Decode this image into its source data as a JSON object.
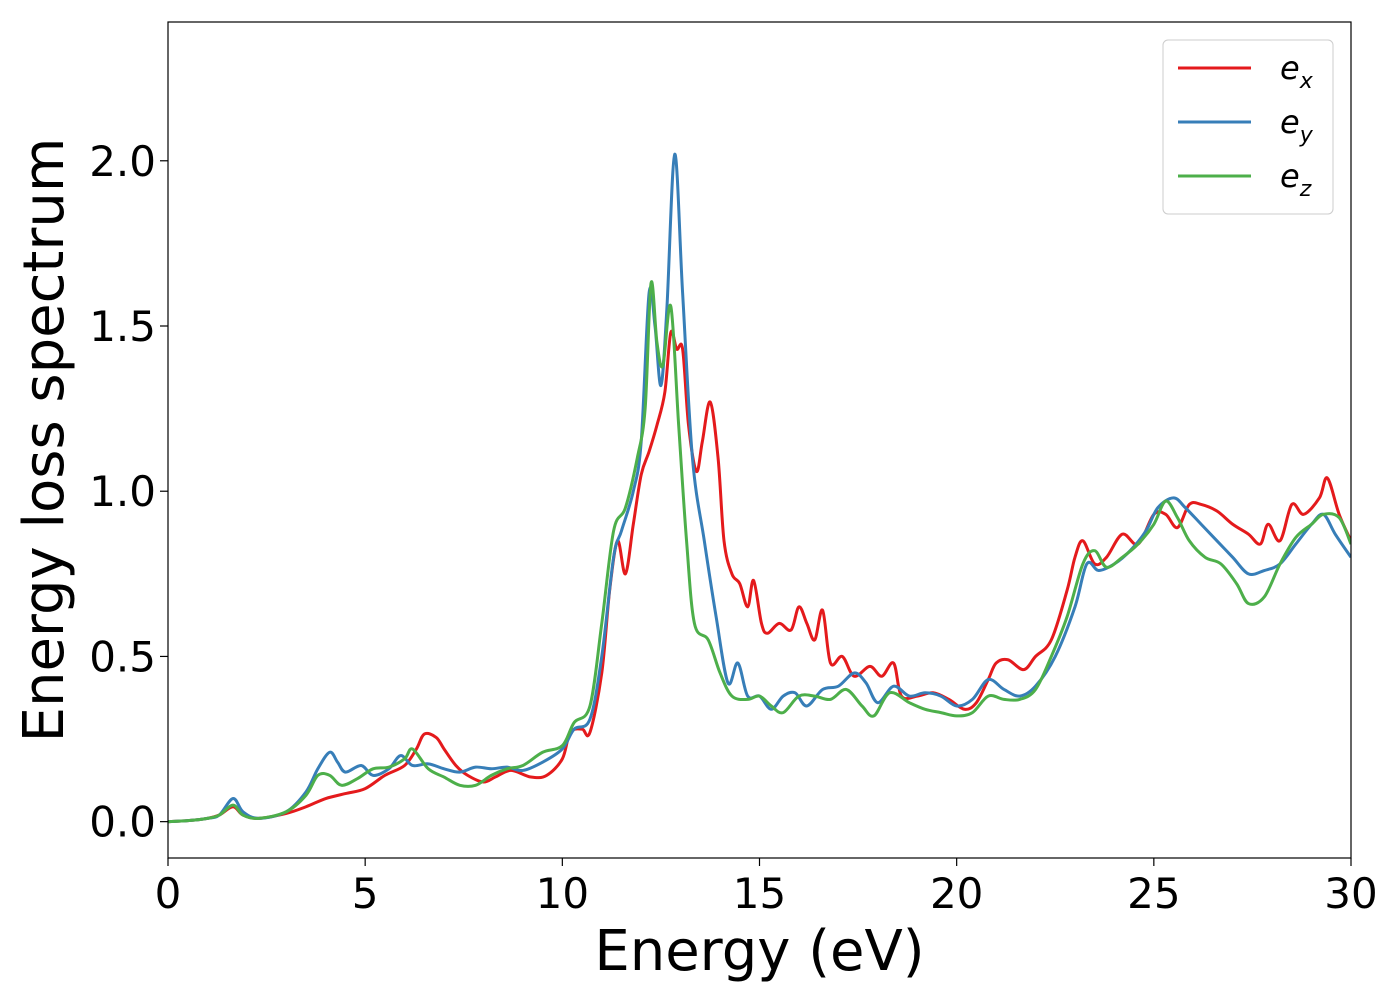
{
  "chart_data": {
    "type": "line",
    "title": "",
    "xlabel": "Energy (eV)",
    "ylabel": "Energy loss spectrum",
    "xlim": [
      0,
      30
    ],
    "ylim": [
      -0.11,
      2.42
    ],
    "xticks": [
      0,
      5,
      10,
      15,
      20,
      25,
      30
    ],
    "xtick_labels": [
      "0",
      "5",
      "10",
      "15",
      "20",
      "25",
      "30"
    ],
    "yticks": [
      0.0,
      0.5,
      1.0,
      1.5,
      2.0
    ],
    "ytick_labels": [
      "0.0",
      "0.5",
      "1.0",
      "1.5",
      "2.0"
    ],
    "grid": false,
    "legend_position": "top-right",
    "series": [
      {
        "name": "e_x",
        "label_base": "e",
        "label_sub": "x",
        "color": "#e41a1c",
        "points": [
          [
            0,
            0
          ],
          [
            0.5,
            0.003
          ],
          [
            1,
            0.01
          ],
          [
            1.3,
            0.02
          ],
          [
            1.65,
            0.045
          ],
          [
            1.9,
            0.02
          ],
          [
            2.3,
            0.01
          ],
          [
            3,
            0.025
          ],
          [
            3.5,
            0.045
          ],
          [
            4,
            0.07
          ],
          [
            4.5,
            0.085
          ],
          [
            5,
            0.1
          ],
          [
            5.5,
            0.14
          ],
          [
            6,
            0.17
          ],
          [
            6.3,
            0.22
          ],
          [
            6.5,
            0.265
          ],
          [
            6.8,
            0.255
          ],
          [
            7,
            0.22
          ],
          [
            7.3,
            0.17
          ],
          [
            7.6,
            0.14
          ],
          [
            8,
            0.12
          ],
          [
            8.3,
            0.135
          ],
          [
            8.7,
            0.155
          ],
          [
            9.2,
            0.135
          ],
          [
            9.6,
            0.14
          ],
          [
            10,
            0.19
          ],
          [
            10.2,
            0.27
          ],
          [
            10.5,
            0.28
          ],
          [
            10.7,
            0.27
          ],
          [
            11,
            0.45
          ],
          [
            11.2,
            0.7
          ],
          [
            11.4,
            0.85
          ],
          [
            11.6,
            0.75
          ],
          [
            11.8,
            0.9
          ],
          [
            12,
            1.05
          ],
          [
            12.2,
            1.12
          ],
          [
            12.4,
            1.2
          ],
          [
            12.6,
            1.3
          ],
          [
            12.75,
            1.48
          ],
          [
            12.9,
            1.43
          ],
          [
            13.05,
            1.43
          ],
          [
            13.2,
            1.2
          ],
          [
            13.4,
            1.06
          ],
          [
            13.55,
            1.15
          ],
          [
            13.75,
            1.27
          ],
          [
            13.95,
            1.1
          ],
          [
            14.1,
            0.85
          ],
          [
            14.3,
            0.75
          ],
          [
            14.5,
            0.72
          ],
          [
            14.7,
            0.65
          ],
          [
            14.85,
            0.73
          ],
          [
            15.05,
            0.6
          ],
          [
            15.2,
            0.57
          ],
          [
            15.5,
            0.6
          ],
          [
            15.8,
            0.58
          ],
          [
            16,
            0.65
          ],
          [
            16.2,
            0.6
          ],
          [
            16.4,
            0.55
          ],
          [
            16.6,
            0.64
          ],
          [
            16.8,
            0.48
          ],
          [
            17.1,
            0.5
          ],
          [
            17.4,
            0.44
          ],
          [
            17.8,
            0.47
          ],
          [
            18.1,
            0.44
          ],
          [
            18.4,
            0.48
          ],
          [
            18.6,
            0.38
          ],
          [
            19,
            0.38
          ],
          [
            19.4,
            0.39
          ],
          [
            19.8,
            0.37
          ],
          [
            20.2,
            0.34
          ],
          [
            20.5,
            0.36
          ],
          [
            20.8,
            0.43
          ],
          [
            21,
            0.48
          ],
          [
            21.3,
            0.49
          ],
          [
            21.7,
            0.46
          ],
          [
            22,
            0.5
          ],
          [
            22.4,
            0.55
          ],
          [
            22.8,
            0.7
          ],
          [
            23,
            0.8
          ],
          [
            23.2,
            0.85
          ],
          [
            23.5,
            0.78
          ],
          [
            23.8,
            0.8
          ],
          [
            24.2,
            0.87
          ],
          [
            24.6,
            0.84
          ],
          [
            25,
            0.93
          ],
          [
            25.3,
            0.93
          ],
          [
            25.6,
            0.89
          ],
          [
            25.9,
            0.96
          ],
          [
            26.2,
            0.96
          ],
          [
            26.6,
            0.94
          ],
          [
            27,
            0.9
          ],
          [
            27.4,
            0.87
          ],
          [
            27.7,
            0.84
          ],
          [
            27.9,
            0.9
          ],
          [
            28.2,
            0.85
          ],
          [
            28.5,
            0.96
          ],
          [
            28.8,
            0.93
          ],
          [
            29.2,
            0.98
          ],
          [
            29.4,
            1.04
          ],
          [
            29.7,
            0.93
          ],
          [
            30,
            0.85
          ]
        ]
      },
      {
        "name": "e_y",
        "label_base": "e",
        "label_sub": "y",
        "color": "#377eb8",
        "points": [
          [
            0,
            0
          ],
          [
            0.5,
            0.003
          ],
          [
            1,
            0.01
          ],
          [
            1.3,
            0.02
          ],
          [
            1.65,
            0.07
          ],
          [
            1.9,
            0.03
          ],
          [
            2.3,
            0.01
          ],
          [
            3,
            0.03
          ],
          [
            3.5,
            0.09
          ],
          [
            3.8,
            0.16
          ],
          [
            4.1,
            0.21
          ],
          [
            4.3,
            0.18
          ],
          [
            4.5,
            0.15
          ],
          [
            4.9,
            0.17
          ],
          [
            5.2,
            0.14
          ],
          [
            5.6,
            0.16
          ],
          [
            5.9,
            0.2
          ],
          [
            6.2,
            0.17
          ],
          [
            6.6,
            0.175
          ],
          [
            7,
            0.16
          ],
          [
            7.4,
            0.15
          ],
          [
            7.8,
            0.165
          ],
          [
            8.2,
            0.16
          ],
          [
            8.6,
            0.165
          ],
          [
            9,
            0.155
          ],
          [
            9.5,
            0.18
          ],
          [
            10,
            0.22
          ],
          [
            10.3,
            0.28
          ],
          [
            10.7,
            0.31
          ],
          [
            11,
            0.5
          ],
          [
            11.3,
            0.8
          ],
          [
            11.5,
            0.88
          ],
          [
            11.8,
            1.0
          ],
          [
            12,
            1.15
          ],
          [
            12.2,
            1.6
          ],
          [
            12.35,
            1.5
          ],
          [
            12.5,
            1.32
          ],
          [
            12.65,
            1.55
          ],
          [
            12.85,
            2.02
          ],
          [
            13.05,
            1.6
          ],
          [
            13.3,
            1.1
          ],
          [
            13.6,
            0.85
          ],
          [
            13.9,
            0.62
          ],
          [
            14.2,
            0.42
          ],
          [
            14.45,
            0.48
          ],
          [
            14.7,
            0.38
          ],
          [
            15,
            0.38
          ],
          [
            15.3,
            0.34
          ],
          [
            15.6,
            0.38
          ],
          [
            15.9,
            0.39
          ],
          [
            16.2,
            0.35
          ],
          [
            16.6,
            0.4
          ],
          [
            17,
            0.41
          ],
          [
            17.4,
            0.45
          ],
          [
            17.7,
            0.42
          ],
          [
            18,
            0.36
          ],
          [
            18.4,
            0.41
          ],
          [
            18.8,
            0.38
          ],
          [
            19.2,
            0.39
          ],
          [
            19.6,
            0.38
          ],
          [
            20,
            0.35
          ],
          [
            20.4,
            0.37
          ],
          [
            20.8,
            0.43
          ],
          [
            21.2,
            0.4
          ],
          [
            21.6,
            0.38
          ],
          [
            22,
            0.41
          ],
          [
            22.5,
            0.5
          ],
          [
            23,
            0.65
          ],
          [
            23.3,
            0.78
          ],
          [
            23.6,
            0.76
          ],
          [
            24,
            0.78
          ],
          [
            24.4,
            0.82
          ],
          [
            24.8,
            0.88
          ],
          [
            25.1,
            0.95
          ],
          [
            25.5,
            0.98
          ],
          [
            25.8,
            0.95
          ],
          [
            26.2,
            0.9
          ],
          [
            26.6,
            0.85
          ],
          [
            27,
            0.8
          ],
          [
            27.4,
            0.75
          ],
          [
            27.8,
            0.76
          ],
          [
            28.2,
            0.78
          ],
          [
            28.6,
            0.84
          ],
          [
            29,
            0.9
          ],
          [
            29.3,
            0.93
          ],
          [
            29.6,
            0.87
          ],
          [
            30,
            0.8
          ]
        ]
      },
      {
        "name": "e_z",
        "label_base": "e",
        "label_sub": "z",
        "color": "#4daf4a",
        "points": [
          [
            0,
            0
          ],
          [
            0.5,
            0.003
          ],
          [
            1,
            0.01
          ],
          [
            1.3,
            0.02
          ],
          [
            1.65,
            0.05
          ],
          [
            1.9,
            0.02
          ],
          [
            2.3,
            0.01
          ],
          [
            3,
            0.03
          ],
          [
            3.5,
            0.08
          ],
          [
            3.8,
            0.14
          ],
          [
            4.1,
            0.14
          ],
          [
            4.4,
            0.11
          ],
          [
            4.8,
            0.13
          ],
          [
            5.2,
            0.16
          ],
          [
            5.6,
            0.165
          ],
          [
            6,
            0.19
          ],
          [
            6.2,
            0.22
          ],
          [
            6.6,
            0.16
          ],
          [
            7,
            0.135
          ],
          [
            7.4,
            0.11
          ],
          [
            7.8,
            0.11
          ],
          [
            8.2,
            0.14
          ],
          [
            8.6,
            0.16
          ],
          [
            9,
            0.17
          ],
          [
            9.5,
            0.21
          ],
          [
            10,
            0.23
          ],
          [
            10.3,
            0.3
          ],
          [
            10.7,
            0.35
          ],
          [
            11,
            0.6
          ],
          [
            11.3,
            0.88
          ],
          [
            11.6,
            0.95
          ],
          [
            11.9,
            1.1
          ],
          [
            12.1,
            1.25
          ],
          [
            12.25,
            1.63
          ],
          [
            12.4,
            1.45
          ],
          [
            12.55,
            1.38
          ],
          [
            12.75,
            1.56
          ],
          [
            12.95,
            1.2
          ],
          [
            13.15,
            0.85
          ],
          [
            13.35,
            0.6
          ],
          [
            13.7,
            0.55
          ],
          [
            14,
            0.45
          ],
          [
            14.3,
            0.38
          ],
          [
            14.7,
            0.37
          ],
          [
            15,
            0.38
          ],
          [
            15.3,
            0.35
          ],
          [
            15.6,
            0.33
          ],
          [
            16,
            0.38
          ],
          [
            16.4,
            0.38
          ],
          [
            16.8,
            0.37
          ],
          [
            17.2,
            0.4
          ],
          [
            17.6,
            0.35
          ],
          [
            17.9,
            0.32
          ],
          [
            18.3,
            0.39
          ],
          [
            18.8,
            0.36
          ],
          [
            19.2,
            0.34
          ],
          [
            19.6,
            0.33
          ],
          [
            20,
            0.32
          ],
          [
            20.4,
            0.33
          ],
          [
            20.8,
            0.38
          ],
          [
            21.2,
            0.37
          ],
          [
            21.6,
            0.37
          ],
          [
            22,
            0.4
          ],
          [
            22.4,
            0.5
          ],
          [
            22.8,
            0.62
          ],
          [
            23.2,
            0.78
          ],
          [
            23.5,
            0.82
          ],
          [
            23.8,
            0.77
          ],
          [
            24.2,
            0.8
          ],
          [
            24.6,
            0.84
          ],
          [
            25,
            0.9
          ],
          [
            25.3,
            0.97
          ],
          [
            25.6,
            0.92
          ],
          [
            25.9,
            0.85
          ],
          [
            26.3,
            0.8
          ],
          [
            26.7,
            0.78
          ],
          [
            27.1,
            0.72
          ],
          [
            27.4,
            0.66
          ],
          [
            27.8,
            0.68
          ],
          [
            28.2,
            0.78
          ],
          [
            28.6,
            0.86
          ],
          [
            29,
            0.9
          ],
          [
            29.3,
            0.93
          ],
          [
            29.7,
            0.92
          ],
          [
            30,
            0.84
          ]
        ]
      }
    ]
  }
}
